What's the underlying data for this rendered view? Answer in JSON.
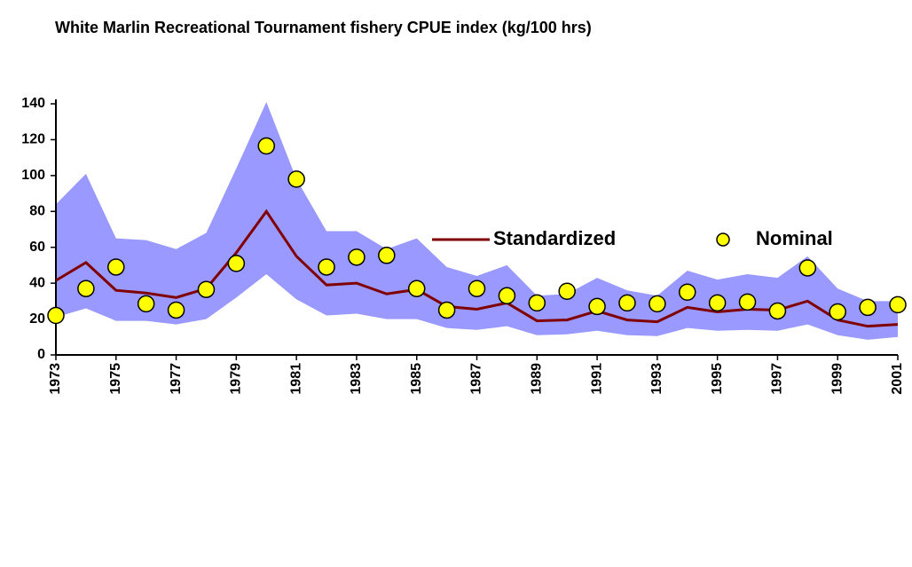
{
  "chart_data": {
    "type": "line",
    "title": "White Marlin Recreational Tournament fishery CPUE index (kg/100 hrs)",
    "x": [
      1973,
      1974,
      1975,
      1976,
      1977,
      1978,
      1979,
      1980,
      1981,
      1982,
      1983,
      1984,
      1985,
      1986,
      1987,
      1988,
      1989,
      1990,
      1991,
      1992,
      1993,
      1994,
      1995,
      1996,
      1997,
      1998,
      1999,
      2000,
      2001
    ],
    "xlim": [
      1973,
      2001
    ],
    "xticks": [
      1973,
      1975,
      1977,
      1979,
      1981,
      1983,
      1985,
      1987,
      1989,
      1991,
      1993,
      1995,
      1997,
      1999,
      2001
    ],
    "ylim": [
      0,
      140
    ],
    "yticks": [
      0,
      20,
      40,
      60,
      80,
      100,
      120,
      140
    ],
    "grid": false,
    "legend": "right",
    "series": [
      {
        "name": "Standardized",
        "type": "line",
        "color": "#800000",
        "band_color": "#9999ff",
        "values": [
          41.5,
          51.5,
          36,
          34.5,
          32,
          37,
          57,
          80,
          55,
          39,
          40,
          34,
          36.5,
          27,
          25.5,
          29,
          19,
          19.5,
          24.5,
          19.5,
          18.5,
          26.5,
          24,
          25.5,
          25,
          30,
          19.5,
          16,
          17
        ],
        "upper": [
          84,
          101,
          65,
          64,
          59,
          68,
          104,
          141,
          98,
          69,
          69,
          59,
          65,
          49,
          44,
          50,
          33,
          34,
          43,
          36,
          33,
          47,
          42,
          45,
          43,
          55,
          37,
          30,
          30
        ],
        "lower": [
          21,
          26,
          19,
          19,
          17,
          20,
          32,
          45,
          31,
          22,
          23,
          20,
          20,
          15,
          14,
          16,
          11,
          11.5,
          13.5,
          11,
          10.5,
          15,
          13.5,
          14,
          13.5,
          17,
          11,
          8.5,
          10
        ]
      },
      {
        "name": "Nominal",
        "type": "scatter",
        "color": "#ffff00",
        "values": [
          22,
          37,
          49,
          28.5,
          25,
          36.5,
          51,
          116.5,
          98,
          49,
          54.5,
          55.5,
          37,
          25,
          37,
          33,
          29,
          35.5,
          27,
          29,
          28.5,
          35,
          29,
          29.5,
          24.5,
          48.5,
          24,
          26.5,
          28
        ]
      }
    ]
  }
}
